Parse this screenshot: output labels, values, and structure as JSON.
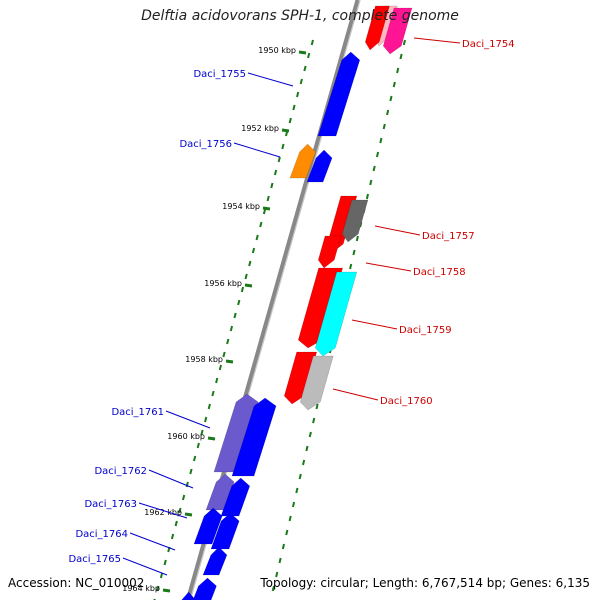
{
  "title": "Delftia acidovorans SPH-1, complete genome",
  "accession_label": "Accession: NC_010002",
  "summary_label": "Topology: circular; Length: 6,767,514 bp; Genes: 6,135",
  "colors": {
    "red": "#ff0000",
    "blue": "#0000ff",
    "pink": "#ffb6c1",
    "magenta": "#ff1493",
    "orange": "#ff8c00",
    "gray": "#666666",
    "cyan": "#00ffff",
    "light_gray": "#bbbbbb",
    "slate_blue": "#6a5acd",
    "label_forward": "#cc0000",
    "label_reverse": "#0000cc",
    "tick": "#1a7a1a"
  },
  "scale": {
    "ticks": [
      {
        "label": "1950 kbp",
        "kbp": 1950
      },
      {
        "label": "1952 kbp",
        "kbp": 1952
      },
      {
        "label": "1954 kbp",
        "kbp": 1954
      },
      {
        "label": "1956 kbp",
        "kbp": 1956
      },
      {
        "label": "1958 kbp",
        "kbp": 1958
      },
      {
        "label": "1960 kbp",
        "kbp": 1960
      },
      {
        "label": "1962 kbp",
        "kbp": 1962
      },
      {
        "label": "1964 kbp",
        "kbp": 1964
      }
    ]
  },
  "genes_forward": [
    {
      "color": "pink",
      "label": ""
    },
    {
      "color": "red",
      "label": ""
    },
    {
      "color": "magenta",
      "label": "Daci_1754"
    },
    {
      "color": "red",
      "label": ""
    },
    {
      "color": "gray",
      "label": "Daci_1757"
    },
    {
      "color": "red",
      "label": "Daci_1758"
    },
    {
      "color": "red",
      "label": ""
    },
    {
      "color": "cyan",
      "label": "Daci_1759"
    },
    {
      "color": "red",
      "label": ""
    },
    {
      "color": "light_gray",
      "label": "Daci_1760"
    }
  ],
  "genes_reverse": [
    {
      "color": "blue",
      "label": "Daci_1755"
    },
    {
      "color": "orange",
      "label": "Daci_1756"
    },
    {
      "color": "blue",
      "label": ""
    },
    {
      "color": "slate_blue",
      "label": "Daci_1761"
    },
    {
      "color": "blue",
      "label": ""
    },
    {
      "color": "slate_blue",
      "label": "Daci_1762"
    },
    {
      "color": "blue",
      "label": ""
    },
    {
      "color": "blue",
      "label": "Daci_1763"
    },
    {
      "color": "blue",
      "label": ""
    },
    {
      "color": "blue",
      "label": "Daci_1764"
    },
    {
      "color": "blue",
      "label": "Daci_1765"
    },
    {
      "color": "blue",
      "label": ""
    }
  ]
}
